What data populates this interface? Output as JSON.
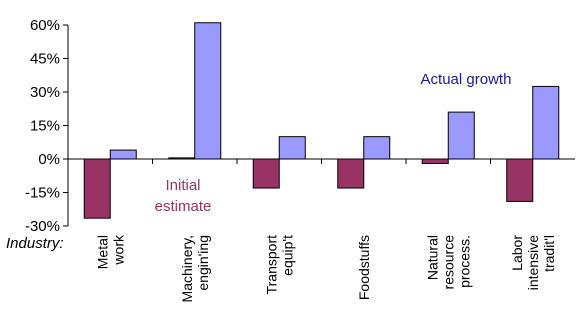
{
  "chart_data": {
    "type": "bar",
    "title": "",
    "xlabel": "Industry:",
    "ylabel": "",
    "ylim": [
      -30,
      60
    ],
    "y_ticks": [
      60,
      45,
      30,
      15,
      0,
      -15,
      -30
    ],
    "y_tick_labels": [
      "60%",
      "45%",
      "30%",
      "15%",
      "0%",
      "-15%",
      "-30%"
    ],
    "grid": false,
    "categories": [
      [
        "Metal",
        "work"
      ],
      [
        "Machinery,",
        "engin'ing"
      ],
      [
        "Transport",
        "equip't"
      ],
      [
        "Foodstuffs"
      ],
      [
        "Natural",
        "resource",
        "process."
      ],
      [
        "Labor",
        "intensive",
        "tradit'l"
      ]
    ],
    "series": [
      {
        "name": "Initial estimate",
        "color": "#993366",
        "values": [
          -26.5,
          0.5,
          -13,
          -13,
          -2,
          -19
        ]
      },
      {
        "name": "Actual growth",
        "color": "#9999ff",
        "values": [
          4,
          61,
          10,
          10,
          21,
          32.5
        ]
      }
    ],
    "annotations": {
      "initial": [
        "Initial",
        "estimate"
      ],
      "actual": "Actual growth"
    }
  }
}
